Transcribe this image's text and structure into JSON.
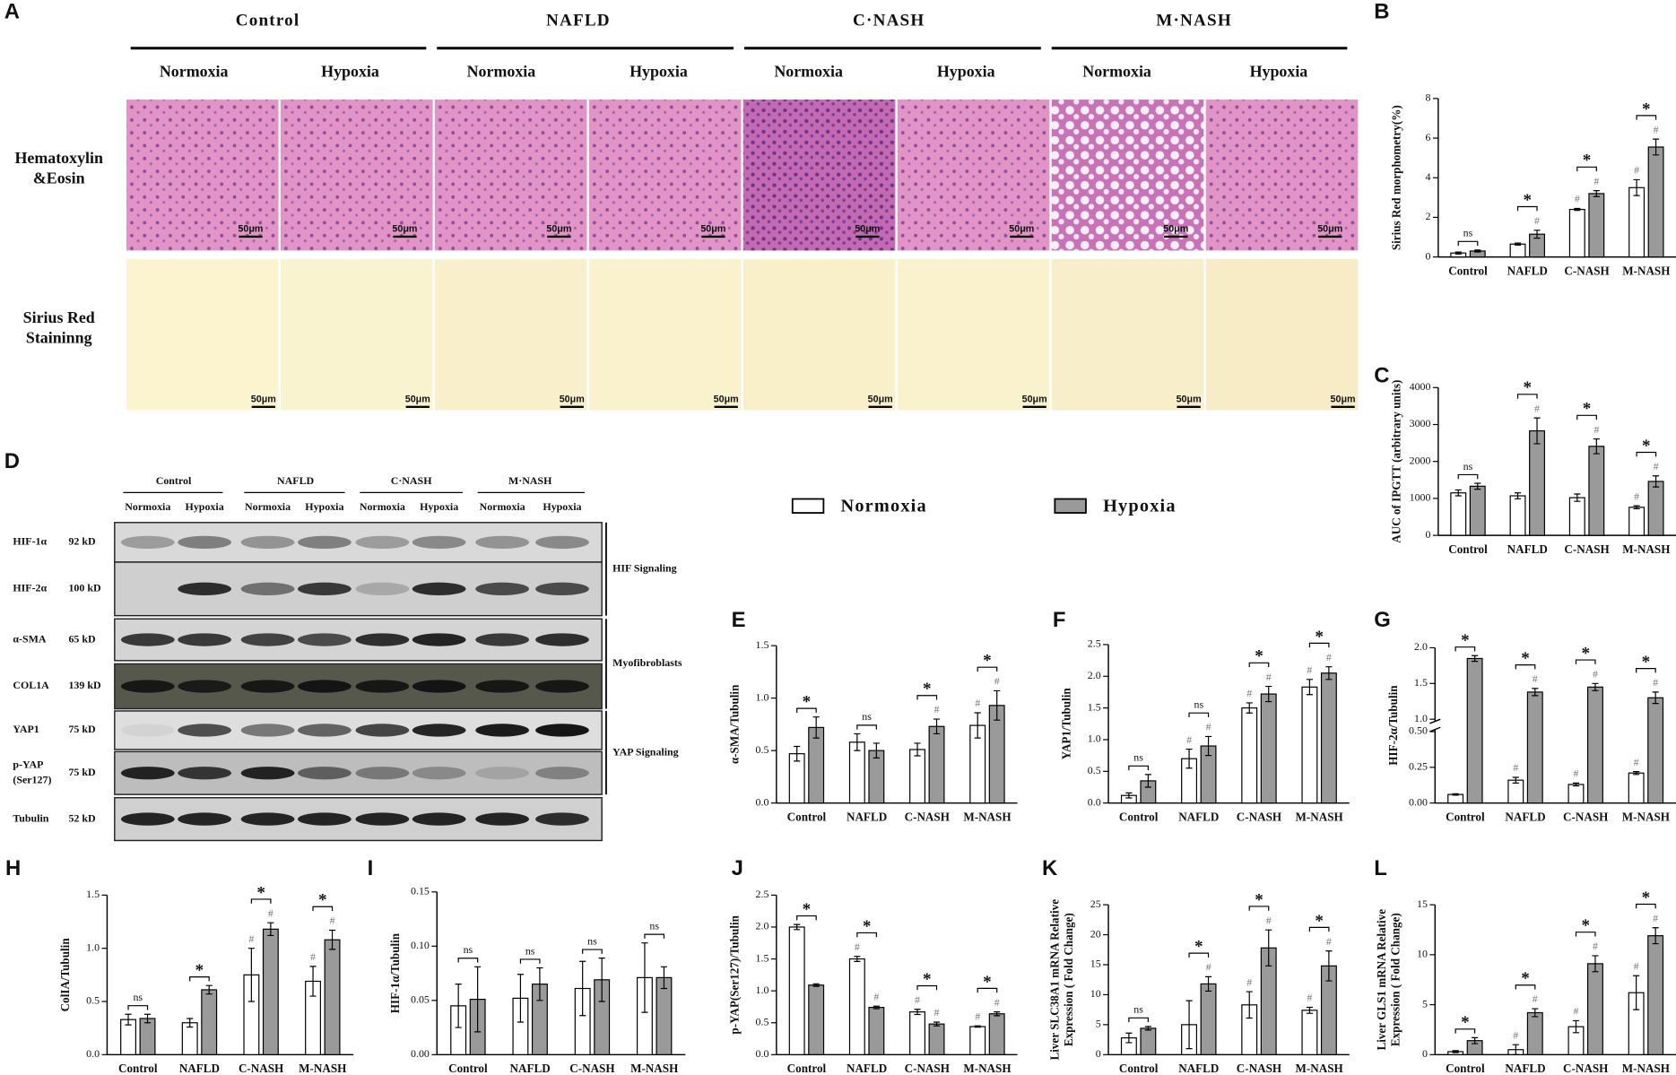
{
  "histology": {
    "panel": "A",
    "groups": [
      "Control",
      "NAFLD",
      "C·NASH",
      "M·NASH"
    ],
    "conditions": [
      "Normoxia",
      "Hypoxia"
    ],
    "rows": [
      [
        "Hematoxylin",
        "&Eosin"
      ],
      [
        "Sirius Red",
        "Staininng"
      ]
    ],
    "scale_bar": "50μm"
  },
  "blot": {
    "panel": "D",
    "groups": [
      "Control",
      "NAFLD",
      "C·NASH",
      "M·NASH"
    ],
    "conditions": [
      "Normoxia",
      "Hypoxia"
    ],
    "rows": [
      {
        "protein": [
          "HIF-1α"
        ],
        "size": "92 kD"
      },
      {
        "protein": [
          "HIF-2α"
        ],
        "size": "100 kD"
      },
      {
        "protein": [
          "α-SMA"
        ],
        "size": "65 kD"
      },
      {
        "protein": [
          "COL1A"
        ],
        "size": "139 kD"
      },
      {
        "protein": [
          "YAP1"
        ],
        "size": "75 kD"
      },
      {
        "protein": [
          "p-YAP",
          "(Ser127)"
        ],
        "size": "75 kD"
      },
      {
        "protein": [
          "Tubulin"
        ],
        "size": "52 kD"
      }
    ],
    "pathways": [
      "HIF Signaling",
      "Myofibroblasts",
      "YAP Signaling"
    ]
  },
  "legend": [
    {
      "name": "Normoxia",
      "color": "#ffffff"
    },
    {
      "name": "Hypoxia",
      "color": "#9a9a9a"
    }
  ],
  "chart_data": [
    {
      "type": "bar",
      "panel": "B",
      "ylabel": [
        "Sirius Red morphometry(%)"
      ],
      "categories": [
        "Control",
        "NAFLD",
        "C-NASH",
        "M-NASH"
      ],
      "ylim": [
        0,
        8
      ],
      "yticks": [
        0,
        2,
        4,
        6,
        8
      ],
      "significance": [
        "ns",
        "*",
        "*",
        "*"
      ],
      "series": [
        {
          "color": "#ffffff",
          "values": [
            0.2,
            0.65,
            2.4,
            3.5
          ],
          "errors": [
            0.05,
            0.05,
            0.05,
            0.4
          ],
          "marks": [
            null,
            null,
            "#",
            "#"
          ]
        },
        {
          "color": "#9a9a9a",
          "values": [
            0.3,
            1.15,
            3.2,
            5.55
          ],
          "errors": [
            0.05,
            0.2,
            0.15,
            0.4
          ],
          "marks": [
            null,
            "#",
            "#",
            "#"
          ]
        }
      ]
    },
    {
      "type": "bar",
      "panel": "C",
      "ylabel": [
        "AUC of IPGTT (arbitrary units)"
      ],
      "categories": [
        "Control",
        "NAFLD",
        "C-NASH",
        "M-NASH"
      ],
      "ylim": [
        0,
        4000
      ],
      "yticks": [
        0,
        1000,
        2000,
        3000,
        4000
      ],
      "significance": [
        "ns",
        "*",
        "*",
        "*"
      ],
      "series": [
        {
          "color": "#ffffff",
          "values": [
            1150,
            1070,
            1020,
            760
          ],
          "errors": [
            80,
            80,
            100,
            40
          ],
          "marks": [
            null,
            null,
            null,
            "#"
          ]
        },
        {
          "color": "#9a9a9a",
          "values": [
            1330,
            2830,
            2410,
            1460
          ],
          "errors": [
            80,
            350,
            200,
            150
          ],
          "marks": [
            null,
            "#",
            "#",
            "#"
          ]
        }
      ]
    },
    {
      "type": "bar",
      "panel": "E",
      "ylabel": [
        "α-SMA/Tubulin"
      ],
      "categories": [
        "Control",
        "NAFLD",
        "C-NASH",
        "M-NASH"
      ],
      "ylim": [
        0,
        1.5
      ],
      "yticks": [
        {
          "value": 0,
          "label": "0.0"
        },
        0.5,
        {
          "value": 1,
          "label": "1.0"
        },
        1.5
      ],
      "significance": [
        "*",
        "ns",
        "*",
        "*"
      ],
      "series": [
        {
          "color": "#ffffff",
          "values": [
            0.47,
            0.58,
            0.51,
            0.74
          ],
          "errors": [
            0.07,
            0.08,
            0.06,
            0.12
          ],
          "marks": [
            null,
            null,
            null,
            "#"
          ]
        },
        {
          "color": "#9a9a9a",
          "values": [
            0.72,
            0.5,
            0.73,
            0.93
          ],
          "errors": [
            0.1,
            0.07,
            0.07,
            0.14
          ],
          "marks": [
            null,
            null,
            "#",
            "#"
          ]
        }
      ]
    },
    {
      "type": "bar",
      "panel": "F",
      "ylabel": [
        "YAP1/Tubulin"
      ],
      "categories": [
        "Control",
        "NAFLD",
        "C-NASH",
        "M-NASH"
      ],
      "ylim": [
        0,
        2.5
      ],
      "yticks": [
        {
          "value": 0,
          "label": "0.0"
        },
        0.5,
        {
          "value": 1,
          "label": "1.0"
        },
        1.5,
        {
          "value": 2,
          "label": "2.0"
        },
        2.5
      ],
      "significance": [
        "ns",
        "ns",
        "*",
        "*"
      ],
      "series": [
        {
          "color": "#ffffff",
          "values": [
            0.12,
            0.7,
            1.5,
            1.83
          ],
          "errors": [
            0.04,
            0.15,
            0.08,
            0.12
          ],
          "marks": [
            null,
            "#",
            "#",
            "#"
          ]
        },
        {
          "color": "#9a9a9a",
          "values": [
            0.35,
            0.9,
            1.72,
            2.05
          ],
          "errors": [
            0.1,
            0.15,
            0.12,
            0.1
          ],
          "marks": [
            null,
            "#",
            "#",
            "#"
          ]
        }
      ]
    },
    {
      "type": "bar",
      "panel": "G",
      "ylabel": [
        "HIF-2α/Tubulin"
      ],
      "categories": [
        "Control",
        "NAFLD",
        "C-NASH",
        "M-NASH"
      ],
      "ylim": [
        0,
        2.0
      ],
      "ybreak": [
        0.5,
        1.0
      ],
      "yticks": [
        {
          "value": 0,
          "label": "0.00"
        },
        0.25,
        {
          "value": 0.5,
          "label": "0.50"
        },
        {
          "value": 1,
          "label": "1.0"
        },
        1.5,
        {
          "value": 2,
          "label": "2.0"
        }
      ],
      "significance": [
        "*",
        "*",
        "*",
        "*"
      ],
      "series": [
        {
          "color": "#ffffff",
          "values": [
            0.06,
            0.16,
            0.13,
            0.21
          ],
          "errors": [
            0.005,
            0.02,
            0.01,
            0.01
          ],
          "marks": [
            null,
            "#",
            "#",
            "#"
          ]
        },
        {
          "color": "#9a9a9a",
          "values": [
            1.85,
            1.38,
            1.45,
            1.3
          ],
          "errors": [
            0.04,
            0.05,
            0.05,
            0.08
          ],
          "marks": [
            null,
            "#",
            "#",
            "#"
          ]
        }
      ]
    },
    {
      "type": "bar",
      "panel": "H",
      "ylabel": [
        "ColIA/Tubulin"
      ],
      "categories": [
        "Control",
        "NAFLD",
        "C-NASH",
        "M-NASH"
      ],
      "ylim": [
        0,
        1.5
      ],
      "yticks": [
        {
          "value": 0,
          "label": "0.0"
        },
        0.5,
        {
          "value": 1,
          "label": "1.0"
        },
        1.5
      ],
      "significance": [
        "ns",
        "*",
        "*",
        "*"
      ],
      "series": [
        {
          "color": "#ffffff",
          "values": [
            0.33,
            0.3,
            0.75,
            0.69
          ],
          "errors": [
            0.05,
            0.04,
            0.25,
            0.14
          ],
          "marks": [
            null,
            null,
            "#",
            "#"
          ]
        },
        {
          "color": "#9a9a9a",
          "values": [
            0.34,
            0.61,
            1.18,
            1.08
          ],
          "errors": [
            0.04,
            0.04,
            0.06,
            0.09
          ],
          "marks": [
            null,
            null,
            "#",
            "#"
          ]
        }
      ]
    },
    {
      "type": "bar",
      "panel": "I",
      "ylabel": [
        "HIF-1α/Tubulin"
      ],
      "categories": [
        "Control",
        "NAFLD",
        "C-NASH",
        "M-NASH"
      ],
      "ylim": [
        0,
        0.15
      ],
      "yticks": [
        {
          "value": 0,
          "label": "0.00"
        },
        0.05,
        {
          "value": 0.1,
          "label": "0.10"
        },
        0.15
      ],
      "significance": [
        "ns",
        "ns",
        "ns",
        "ns"
      ],
      "series": [
        {
          "color": "#ffffff",
          "values": [
            0.045,
            0.052,
            0.061,
            0.071
          ],
          "errors": [
            0.02,
            0.022,
            0.025,
            0.032
          ],
          "marks": [
            null,
            null,
            null,
            null
          ]
        },
        {
          "color": "#9a9a9a",
          "values": [
            0.051,
            0.065,
            0.069,
            0.071
          ],
          "errors": [
            0.03,
            0.015,
            0.02,
            0.01
          ],
          "marks": [
            null,
            null,
            null,
            null
          ]
        }
      ]
    },
    {
      "type": "bar",
      "panel": "J",
      "ylabel": [
        "p-YAP(Ser127)/Tubulin"
      ],
      "categories": [
        "Control",
        "NAFLD",
        "C-NASH",
        "M-NASH"
      ],
      "ylim": [
        0,
        2.5
      ],
      "yticks": [
        {
          "value": 0,
          "label": "0.0"
        },
        0.5,
        {
          "value": 1,
          "label": "1.0"
        },
        1.5,
        {
          "value": 2,
          "label": "2.0"
        },
        2.5
      ],
      "significance": [
        "*",
        "*",
        "*",
        "*"
      ],
      "series": [
        {
          "color": "#ffffff",
          "values": [
            2.0,
            1.5,
            0.67,
            0.44
          ],
          "errors": [
            0.04,
            0.04,
            0.04,
            0.01
          ],
          "marks": [
            null,
            "#",
            "#",
            "#"
          ]
        },
        {
          "color": "#9a9a9a",
          "values": [
            1.09,
            0.74,
            0.48,
            0.64
          ],
          "errors": [
            0.02,
            0.02,
            0.03,
            0.03
          ],
          "marks": [
            null,
            "#",
            "#",
            "#"
          ]
        }
      ]
    },
    {
      "type": "bar",
      "panel": "K",
      "ylabel": [
        "Liver SLC38A1 mRNA Relative",
        "Expression ( Fold Change)"
      ],
      "categories": [
        "Control",
        "NAFLD",
        "C-NASH",
        "M-NASH"
      ],
      "ylim": [
        0,
        25
      ],
      "yticks": [
        0,
        5,
        10,
        15,
        20,
        25
      ],
      "significance": [
        "ns",
        "*",
        "*",
        "*"
      ],
      "series": [
        {
          "color": "#ffffff",
          "values": [
            2.8,
            5.0,
            8.3,
            7.4
          ],
          "errors": [
            0.8,
            4,
            2.2,
            0.5
          ],
          "marks": [
            null,
            null,
            "#",
            "#"
          ]
        },
        {
          "color": "#9a9a9a",
          "values": [
            4.4,
            11.8,
            17.8,
            14.8
          ],
          "errors": [
            0.3,
            1.2,
            3,
            2.5
          ],
          "marks": [
            null,
            "#",
            "#",
            "#"
          ]
        }
      ]
    },
    {
      "type": "bar",
      "panel": "L",
      "ylabel": [
        "Liver GLS1 mRNA Relative",
        "Expression ( Fold Change)"
      ],
      "categories": [
        "Control",
        "NAFLD",
        "C-NASH",
        "M-NASH"
      ],
      "ylim": [
        0,
        15
      ],
      "yticks": [
        0,
        5,
        10,
        15
      ],
      "significance": [
        "*",
        "*",
        "*",
        "*"
      ],
      "series": [
        {
          "color": "#ffffff",
          "values": [
            0.3,
            0.5,
            2.8,
            6.2
          ],
          "errors": [
            0.1,
            0.5,
            0.6,
            1.7
          ],
          "marks": [
            null,
            "#",
            "#",
            "#"
          ]
        },
        {
          "color": "#9a9a9a",
          "values": [
            1.4,
            4.2,
            9.1,
            11.9
          ],
          "errors": [
            0.3,
            0.4,
            0.8,
            0.8
          ],
          "marks": [
            null,
            "#",
            "#",
            "#"
          ]
        }
      ]
    }
  ]
}
